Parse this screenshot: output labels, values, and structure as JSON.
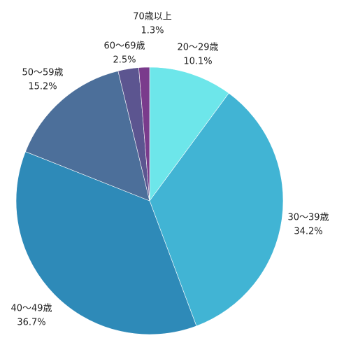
{
  "chart_data": {
    "type": "pie",
    "categories": [
      "20〜29歳",
      "30〜39歳",
      "40〜49歳",
      "50〜59歳",
      "60〜69歳",
      "70歳以上"
    ],
    "values": [
      10.1,
      34.2,
      36.7,
      15.2,
      2.5,
      1.3
    ],
    "value_labels": [
      "10.1%",
      "34.2%",
      "36.7%",
      "15.2%",
      "2.5%",
      "1.3%"
    ],
    "colors": [
      "#6de6ea",
      "#41b4d4",
      "#2e8ab8",
      "#4c6f9a",
      "#5c5590",
      "#7a3b8c"
    ]
  }
}
